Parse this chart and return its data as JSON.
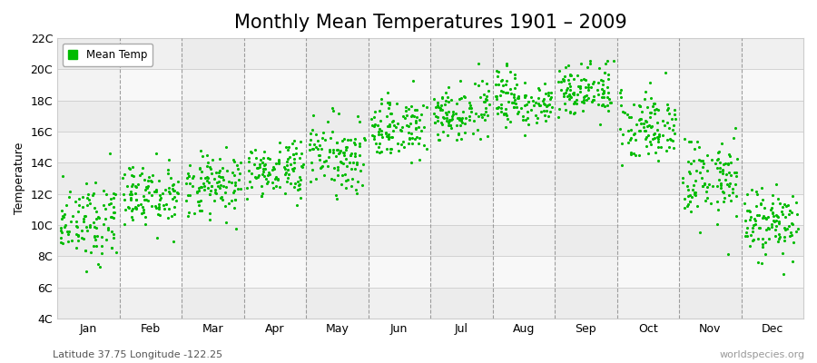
{
  "title": "Monthly Mean Temperatures 1901 – 2009",
  "ylabel": "Temperature",
  "xlabel_labels": [
    "Jan",
    "Feb",
    "Mar",
    "Apr",
    "May",
    "Jun",
    "Jul",
    "Aug",
    "Sep",
    "Oct",
    "Nov",
    "Dec"
  ],
  "ytick_labels": [
    "4C",
    "6C",
    "8C",
    "10C",
    "12C",
    "14C",
    "16C",
    "18C",
    "20C",
    "22C"
  ],
  "ytick_values": [
    4,
    6,
    8,
    10,
    12,
    14,
    16,
    18,
    20,
    22
  ],
  "ylim": [
    4,
    22
  ],
  "dot_color": "#00bb00",
  "bg_color": "#ffffff",
  "band_color_light": "#f5f5f5",
  "band_color_dark": "#ebebeb",
  "subtitle": "Latitude 37.75 Longitude -122.25",
  "watermark": "worldspecies.org",
  "legend_label": "Mean Temp",
  "title_fontsize": 15,
  "axis_fontsize": 9,
  "num_years": 109,
  "monthly_means": [
    10.3,
    11.8,
    12.5,
    13.5,
    14.5,
    16.2,
    17.2,
    18.0,
    18.8,
    16.5,
    13.0,
    10.2
  ],
  "monthly_stds": [
    1.3,
    1.1,
    1.0,
    0.9,
    1.1,
    1.0,
    0.9,
    0.85,
    0.9,
    1.2,
    1.4,
    1.2
  ],
  "seed": 12
}
